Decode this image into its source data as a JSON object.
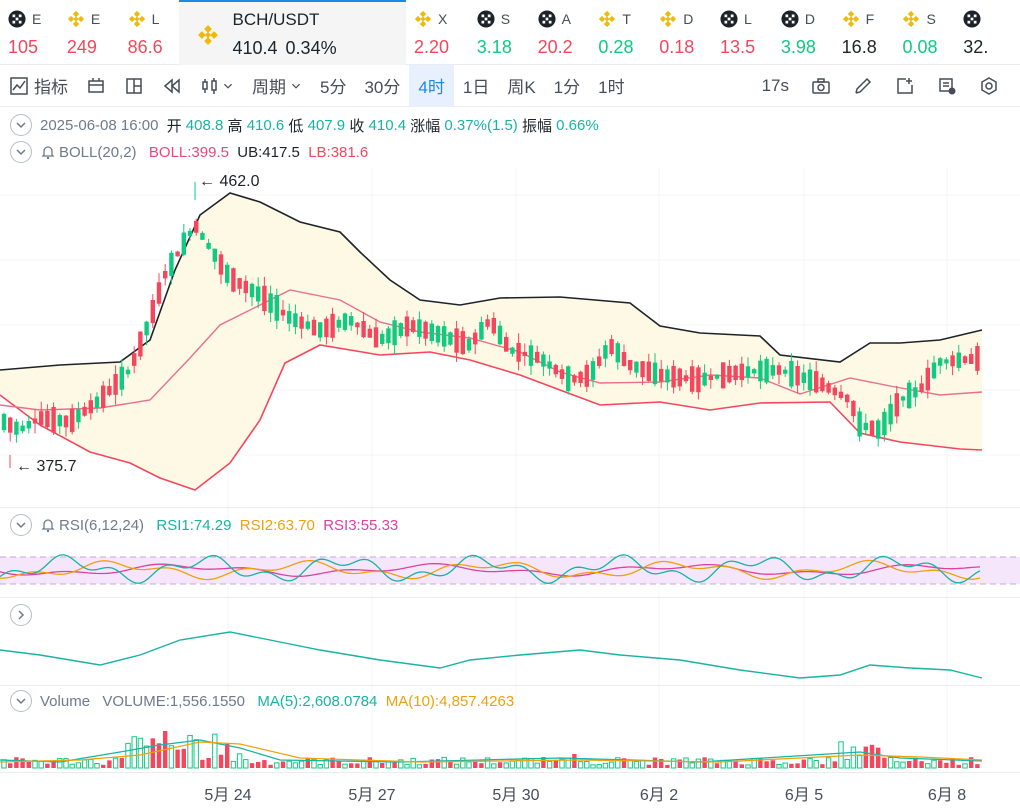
{
  "tickers": [
    {
      "name": "E",
      "value": "105",
      "icon": "x-coin-icon",
      "dir": "down"
    },
    {
      "name": "E",
      "value": "249",
      "icon": "bnb-coin-icon",
      "dir": "down"
    },
    {
      "name": "L",
      "value": "86.6",
      "icon": "bnb-coin-icon",
      "dir": "down"
    },
    {
      "name": "BCH/USDT",
      "value": "410.4",
      "change": "0.34%",
      "icon": "bnb-coin-icon",
      "dir": "neutral",
      "active": true
    },
    {
      "name": "X",
      "value": "2.20",
      "icon": "bnb-coin-icon",
      "dir": "down"
    },
    {
      "name": "S",
      "value": "3.18",
      "icon": "x-coin-icon",
      "dir": "up"
    },
    {
      "name": "A",
      "value": "20.2",
      "icon": "x-coin-icon",
      "dir": "down"
    },
    {
      "name": "T",
      "value": "0.28",
      "icon": "bnb-coin-icon",
      "dir": "up"
    },
    {
      "name": "D",
      "value": "0.18",
      "icon": "bnb-coin-icon",
      "dir": "down"
    },
    {
      "name": "L",
      "value": "13.5",
      "icon": "x-coin-icon",
      "dir": "down"
    },
    {
      "name": "D",
      "value": "3.98",
      "icon": "x-coin-icon",
      "dir": "up"
    },
    {
      "name": "F",
      "value": "16.8",
      "icon": "bnb-coin-icon",
      "dir": "neutral"
    },
    {
      "name": "S",
      "value": "0.08",
      "icon": "bnb-coin-icon",
      "dir": "up"
    },
    {
      "name": "",
      "value": "32.",
      "icon": "x-coin-icon",
      "dir": "neutral"
    }
  ],
  "toolbar": {
    "indicators": "指标",
    "period": "周期",
    "intervals": [
      "5分",
      "30分",
      "4时",
      "1日",
      "周K",
      "1分",
      "1时"
    ],
    "active_interval": "4时",
    "countdown": "17s"
  },
  "ohlc": {
    "date": "2025-06-08 16:00",
    "open_label": "开",
    "open": "408.8",
    "high_label": "高",
    "high": "410.6",
    "low_label": "低",
    "low": "407.9",
    "close_label": "收",
    "close": "410.4",
    "change_label": "涨幅",
    "change": "0.37%(1.5)",
    "amp_label": "振幅",
    "amp": "0.66%"
  },
  "boll": {
    "name": "BOLL(20,2)",
    "mid": "BOLL:399.5",
    "ub": "UB:417.5",
    "lb": "LB:381.6"
  },
  "price_marks": {
    "high": "← 462.0",
    "low": "← 375.7"
  },
  "rsi": {
    "name": "RSI(6,12,24)",
    "rsi1": "RSI1:74.29",
    "rsi2": "RSI2:63.70",
    "rsi3": "RSI3:55.33"
  },
  "volume": {
    "name": "Volume",
    "vol": "VOLUME:1,556.1550",
    "ma5": "MA(5):2,608.0784",
    "ma10": "MA(10):4,857.4263"
  },
  "x_axis": [
    "5月 24",
    "5月 27",
    "5月 30",
    "6月 2",
    "6月 5",
    "6月 8"
  ],
  "colors": {
    "up": "#0ecb81",
    "down": "#f6465d",
    "accent": "#1e88e5",
    "boll_band": "#fdf9e5"
  }
}
